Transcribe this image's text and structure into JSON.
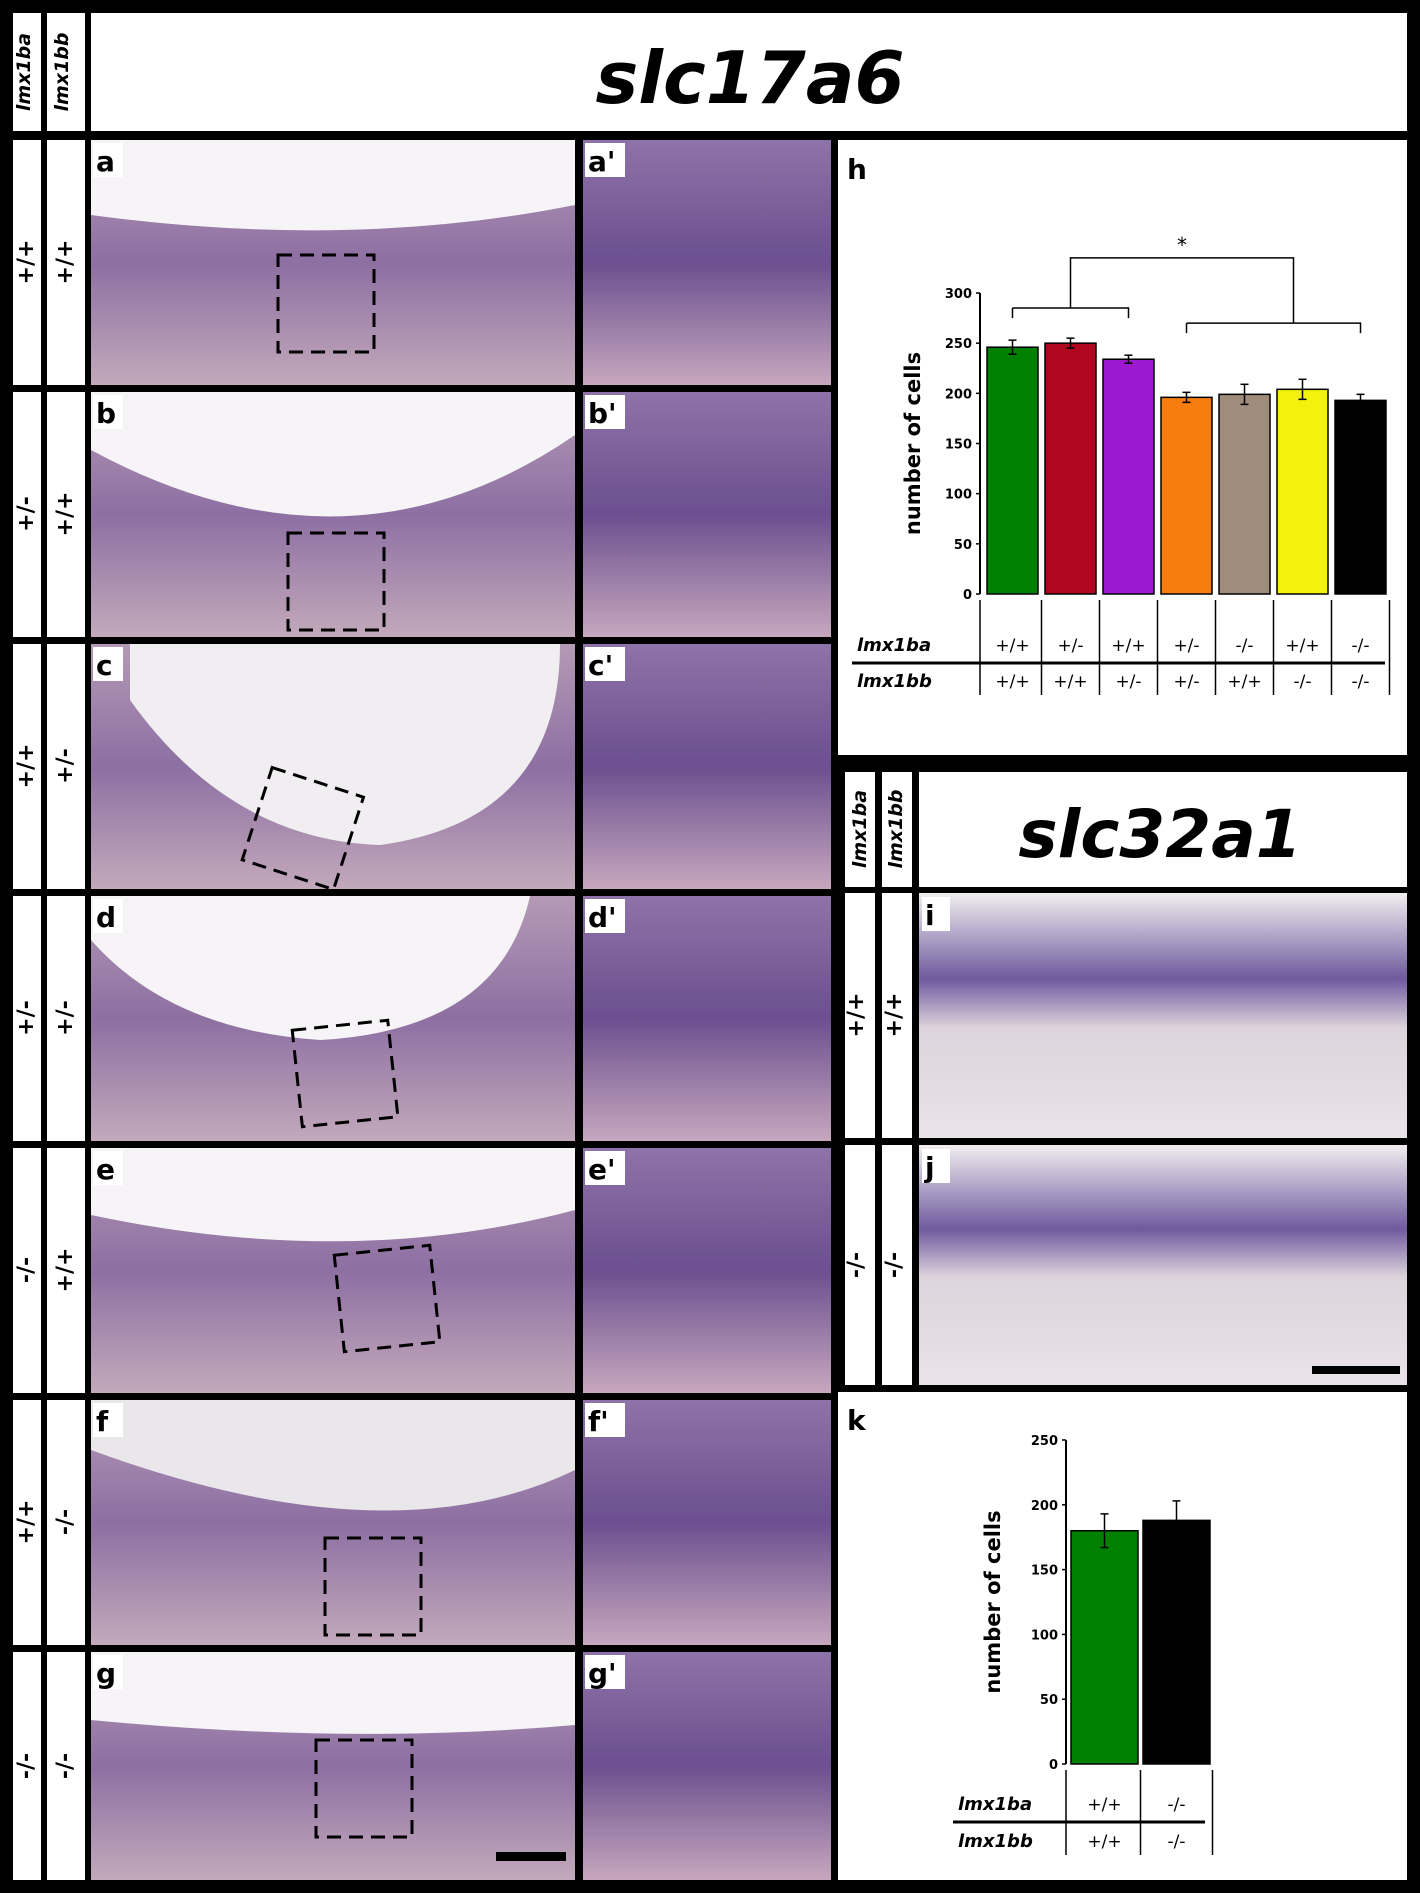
{
  "figure": {
    "top_gene": "slc17a6",
    "right_gene": "slc32a1",
    "col_headers": [
      "lmx1ba",
      "lmx1bb"
    ],
    "rows": [
      {
        "letter": "a",
        "zoom": "a'",
        "lmx1ba": "+/+",
        "lmx1bb": "+/+"
      },
      {
        "letter": "b",
        "zoom": "b'",
        "lmx1ba": "+/-",
        "lmx1bb": "+/+"
      },
      {
        "letter": "c",
        "zoom": "c'",
        "lmx1ba": "+/+",
        "lmx1bb": "+/-"
      },
      {
        "letter": "d",
        "zoom": "d'",
        "lmx1ba": "+/-",
        "lmx1bb": "+/-"
      },
      {
        "letter": "e",
        "zoom": "e'",
        "lmx1ba": "-/-",
        "lmx1bb": "+/+"
      },
      {
        "letter": "f",
        "zoom": "f'",
        "lmx1ba": "+/+",
        "lmx1bb": "-/-"
      },
      {
        "letter": "g",
        "zoom": "g'",
        "lmx1ba": "-/-",
        "lmx1bb": "-/-"
      }
    ],
    "right_rows": [
      {
        "letter": "i",
        "lmx1ba": "+/+",
        "lmx1bb": "+/+"
      },
      {
        "letter": "j",
        "lmx1ba": "-/-",
        "lmx1bb": "-/-"
      }
    ]
  },
  "chart_data": [
    {
      "panel": "h",
      "type": "bar",
      "ylabel": "number of cells",
      "ylim": [
        0,
        300
      ],
      "yticks": [
        "0",
        "50",
        "100",
        "150",
        "200",
        "250",
        "300"
      ],
      "row_labels": [
        "lmx1ba",
        "lmx1bb"
      ],
      "lmx1ba": [
        "+/+",
        "+/-",
        "+/+",
        "+/-",
        "-/-",
        "+/+",
        "-/-"
      ],
      "lmx1bb": [
        "+/+",
        "+/+",
        "+/-",
        "+/-",
        "+/+",
        "-/-",
        "-/-"
      ],
      "values": [
        246,
        250,
        234,
        196,
        199,
        204,
        193
      ],
      "errors": [
        7,
        5,
        4,
        5,
        10,
        10,
        6
      ],
      "colors": [
        "#008000",
        "#b0071f",
        "#9d19d1",
        "#f77d0f",
        "#9f8c7b",
        "#f2f20d",
        "#000000"
      ],
      "annotation": "*"
    },
    {
      "panel": "k",
      "type": "bar",
      "ylabel": "number of cells",
      "ylim": [
        0,
        250
      ],
      "yticks": [
        "0",
        "50",
        "100",
        "150",
        "200",
        "250"
      ],
      "row_labels": [
        "lmx1ba",
        "lmx1bb"
      ],
      "lmx1ba": [
        "+/+",
        "-/-"
      ],
      "lmx1bb": [
        "+/+",
        "-/-"
      ],
      "values": [
        180,
        188
      ],
      "errors": [
        13,
        15
      ],
      "colors": [
        "#008000",
        "#000000"
      ]
    }
  ]
}
